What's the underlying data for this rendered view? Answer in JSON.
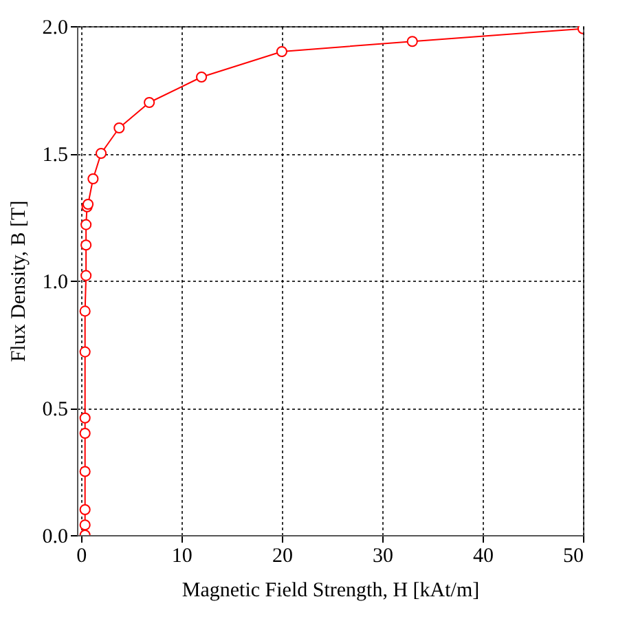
{
  "chart_data": {
    "type": "line",
    "xlabel": "Magnetic Field Strength, H [kAt/m]",
    "ylabel": "Flux Density, B [T]",
    "x": [
      0.4,
      0.4,
      0.4,
      0.4,
      0.4,
      0.4,
      0.4,
      0.4,
      0.5,
      0.5,
      0.5,
      0.6,
      0.7,
      1.2,
      2,
      3.8,
      6.8,
      12,
      20,
      33,
      50
    ],
    "series": [
      {
        "color": "#ff0000",
        "values": [
          0,
          0.04,
          0.1,
          0.25,
          0.4,
          0.46,
          0.72,
          0.88,
          1.02,
          1.14,
          1.22,
          1.29,
          1.3,
          1.4,
          1.5,
          1.6,
          1.7,
          1.8,
          1.9,
          1.94,
          1.99
        ]
      }
    ],
    "xlim": [
      -0.4,
      50
    ],
    "xticks": [
      0,
      10,
      20,
      30,
      40,
      50
    ],
    "ylim": [
      0,
      2.0
    ],
    "yticks": [
      {
        "value": 0,
        "label": "0.0"
      },
      {
        "value": 0.5,
        "label": "0.5"
      },
      {
        "value": 1,
        "label": "1.0"
      },
      {
        "value": 1.5,
        "label": "1.5"
      },
      {
        "value": 2,
        "label": "2.0"
      }
    ],
    "grid": true,
    "marker": "circle",
    "line_style": "solid"
  }
}
